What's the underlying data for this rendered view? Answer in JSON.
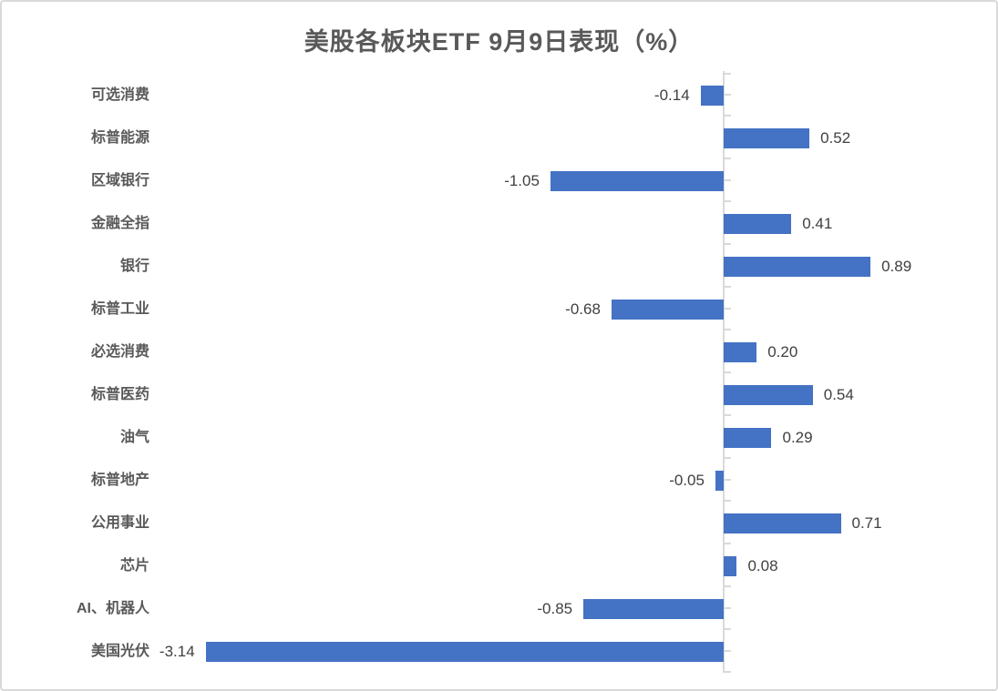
{
  "chart_data": {
    "type": "bar",
    "orientation": "horizontal",
    "title": "美股各板块ETF 9月9日表现（%）",
    "categories": [
      "可选消费",
      "标普能源",
      "区域银行",
      "金融全指",
      "银行",
      "标普工业",
      "必选消费",
      "标普医药",
      "油气",
      "标普地产",
      "公用事业",
      "芯片",
      "AI、机器人",
      "美国光伏"
    ],
    "values": [
      -0.14,
      0.52,
      -1.05,
      0.41,
      0.89,
      -0.68,
      0.2,
      0.54,
      0.29,
      -0.05,
      0.71,
      0.08,
      -0.85,
      -3.14
    ],
    "value_labels": [
      "-0.14",
      "0.52",
      "-1.05",
      "0.41",
      "0.89",
      "-0.68",
      "0.20",
      "0.54",
      "0.29",
      "-0.05",
      "0.71",
      "0.08",
      "-0.85",
      "-3.14"
    ],
    "xlim": [
      -3.5,
      1.7
    ],
    "grid": false,
    "legend": null,
    "bar_color": "#4472C4",
    "axis_color": "#D9D9D9",
    "title_color": "#595959",
    "category_label_color": "#595959",
    "value_label_color": "#404040"
  }
}
